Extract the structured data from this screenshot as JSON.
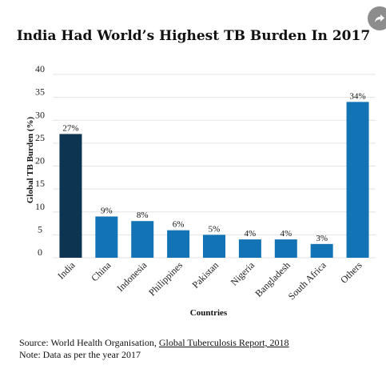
{
  "chart_data": {
    "type": "bar",
    "title": "India Had World’s Highest TB Burden In 2017",
    "xlabel": "Countries",
    "ylabel": "Global TB Burden (%)",
    "ylim": [
      0,
      40
    ],
    "yticks": [
      0,
      5,
      10,
      15,
      20,
      25,
      30,
      35,
      40
    ],
    "grid": true,
    "categories": [
      "India",
      "China",
      "Indonesia",
      "Philippines",
      "Pakistan",
      "Nigeria",
      "Bangladesh",
      "South Africa",
      "Others"
    ],
    "values": [
      27,
      9,
      8,
      6,
      5,
      4,
      4,
      3,
      34
    ],
    "value_labels": [
      "27%",
      "9%",
      "8%",
      "6%",
      "5%",
      "4%",
      "4%",
      "3%",
      "34%"
    ],
    "colors": {
      "highlight": "#0d3450",
      "default": "#1274b5"
    },
    "highlight_index": 0
  },
  "footer": {
    "source_prefix": "Source: World Health Organisation, ",
    "source_link": "Global Tuberculosis Report, 2018",
    "note": "Note: Data as per the year 2017"
  },
  "share": {
    "icon": "share-icon"
  }
}
